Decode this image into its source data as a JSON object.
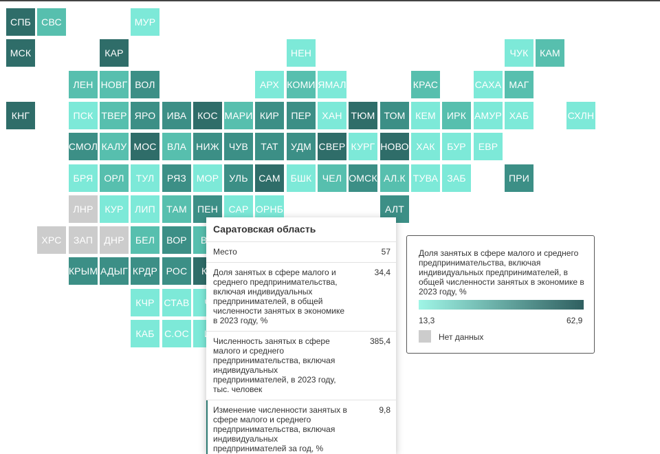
{
  "map": {
    "colors": {
      "light": "#7de9d8",
      "mint": "#5fd8c4",
      "mid": "#57bfae",
      "teal": "#3c8f86",
      "dark": "#2f6d69",
      "nodata": "#cccccc"
    },
    "regions": [
      {
        "code": "СПБ",
        "col": 0,
        "row": 0,
        "shade": "dark"
      },
      {
        "code": "СВС",
        "col": 1,
        "row": 0,
        "shade": "mid"
      },
      {
        "code": "МУР",
        "col": 4,
        "row": 0,
        "shade": "light"
      },
      {
        "code": "МСК",
        "col": 0,
        "row": 1,
        "shade": "dark"
      },
      {
        "code": "КАР",
        "col": 3,
        "row": 1,
        "shade": "dark"
      },
      {
        "code": "НЕН",
        "col": 9,
        "row": 1,
        "shade": "light"
      },
      {
        "code": "ЧУК",
        "col": 16,
        "row": 1,
        "shade": "light"
      },
      {
        "code": "КАМ",
        "col": 17,
        "row": 1,
        "shade": "mid"
      },
      {
        "code": "ЛЕН",
        "col": 2,
        "row": 2,
        "shade": "mid"
      },
      {
        "code": "НОВГ",
        "col": 3,
        "row": 2,
        "shade": "mid"
      },
      {
        "code": "ВОЛ",
        "col": 4,
        "row": 2,
        "shade": "teal"
      },
      {
        "code": "АРХ",
        "col": 8,
        "row": 2,
        "shade": "light"
      },
      {
        "code": "КОМИ",
        "col": 9,
        "row": 2,
        "shade": "mid"
      },
      {
        "code": "ЯМАЛ",
        "col": 10,
        "row": 2,
        "shade": "light"
      },
      {
        "code": "КРАС",
        "col": 13,
        "row": 2,
        "shade": "mid"
      },
      {
        "code": "САХА",
        "col": 15,
        "row": 2,
        "shade": "light"
      },
      {
        "code": "МАГ",
        "col": 16,
        "row": 2,
        "shade": "mid"
      },
      {
        "code": "КНГ",
        "col": 0,
        "row": 3,
        "shade": "dark"
      },
      {
        "code": "ПСК",
        "col": 2,
        "row": 3,
        "shade": "light"
      },
      {
        "code": "ТВЕР",
        "col": 3,
        "row": 3,
        "shade": "mid"
      },
      {
        "code": "ЯРО",
        "col": 4,
        "row": 3,
        "shade": "teal"
      },
      {
        "code": "ИВА",
        "col": 5,
        "row": 3,
        "shade": "teal"
      },
      {
        "code": "КОС",
        "col": 6,
        "row": 3,
        "shade": "dark"
      },
      {
        "code": "МАРИ",
        "col": 7,
        "row": 3,
        "shade": "mid"
      },
      {
        "code": "КИР",
        "col": 8,
        "row": 3,
        "shade": "teal"
      },
      {
        "code": "ПЕР",
        "col": 9,
        "row": 3,
        "shade": "teal"
      },
      {
        "code": "ХАН",
        "col": 10,
        "row": 3,
        "shade": "light"
      },
      {
        "code": "ТЮМ",
        "col": 11,
        "row": 3,
        "shade": "dark"
      },
      {
        "code": "ТОМ",
        "col": 12,
        "row": 3,
        "shade": "teal"
      },
      {
        "code": "КЕМ",
        "col": 13,
        "row": 3,
        "shade": "light"
      },
      {
        "code": "ИРК",
        "col": 14,
        "row": 3,
        "shade": "mid"
      },
      {
        "code": "АМУР",
        "col": 15,
        "row": 3,
        "shade": "light"
      },
      {
        "code": "ХАБ",
        "col": 16,
        "row": 3,
        "shade": "light"
      },
      {
        "code": "СХЛН",
        "col": 18,
        "row": 3,
        "shade": "light"
      },
      {
        "code": "СМОЛ",
        "col": 2,
        "row": 4,
        "shade": "teal"
      },
      {
        "code": "КАЛУ",
        "col": 3,
        "row": 4,
        "shade": "mid"
      },
      {
        "code": "МОС",
        "col": 4,
        "row": 4,
        "shade": "dark"
      },
      {
        "code": "ВЛА",
        "col": 5,
        "row": 4,
        "shade": "mid"
      },
      {
        "code": "НИЖ",
        "col": 6,
        "row": 4,
        "shade": "teal"
      },
      {
        "code": "ЧУВ",
        "col": 7,
        "row": 4,
        "shade": "teal"
      },
      {
        "code": "ТАТ",
        "col": 8,
        "row": 4,
        "shade": "teal"
      },
      {
        "code": "УДМ",
        "col": 9,
        "row": 4,
        "shade": "teal"
      },
      {
        "code": "СВЕР",
        "col": 10,
        "row": 4,
        "shade": "dark"
      },
      {
        "code": "КУРГ",
        "col": 11,
        "row": 4,
        "shade": "light"
      },
      {
        "code": "НОВО",
        "col": 12,
        "row": 4,
        "shade": "dark"
      },
      {
        "code": "ХАК",
        "col": 13,
        "row": 4,
        "shade": "light"
      },
      {
        "code": "БУР",
        "col": 14,
        "row": 4,
        "shade": "light"
      },
      {
        "code": "ЕВР",
        "col": 15,
        "row": 4,
        "shade": "light"
      },
      {
        "code": "БРЯ",
        "col": 2,
        "row": 5,
        "shade": "light"
      },
      {
        "code": "ОРЛ",
        "col": 3,
        "row": 5,
        "shade": "mid"
      },
      {
        "code": "ТУЛ",
        "col": 4,
        "row": 5,
        "shade": "light"
      },
      {
        "code": "РЯЗ",
        "col": 5,
        "row": 5,
        "shade": "teal"
      },
      {
        "code": "МОР",
        "col": 6,
        "row": 5,
        "shade": "light"
      },
      {
        "code": "УЛЬ",
        "col": 7,
        "row": 5,
        "shade": "teal"
      },
      {
        "code": "САМ",
        "col": 8,
        "row": 5,
        "shade": "dark"
      },
      {
        "code": "БШК",
        "col": 9,
        "row": 5,
        "shade": "light"
      },
      {
        "code": "ЧЕЛ",
        "col": 10,
        "row": 5,
        "shade": "mid"
      },
      {
        "code": "ОМСК",
        "col": 11,
        "row": 5,
        "shade": "teal"
      },
      {
        "code": "АЛ.К",
        "col": 12,
        "row": 5,
        "shade": "mid"
      },
      {
        "code": "ТУВА",
        "col": 13,
        "row": 5,
        "shade": "light"
      },
      {
        "code": "ЗАБ",
        "col": 14,
        "row": 5,
        "shade": "light"
      },
      {
        "code": "ПРИ",
        "col": 16,
        "row": 5,
        "shade": "teal"
      },
      {
        "code": "ЛНР",
        "col": 2,
        "row": 6,
        "shade": "nodata"
      },
      {
        "code": "КУР",
        "col": 3,
        "row": 6,
        "shade": "light"
      },
      {
        "code": "ЛИП",
        "col": 4,
        "row": 6,
        "shade": "light"
      },
      {
        "code": "ТАМ",
        "col": 5,
        "row": 6,
        "shade": "mid"
      },
      {
        "code": "ПЕН",
        "col": 6,
        "row": 6,
        "shade": "teal"
      },
      {
        "code": "САР",
        "col": 7,
        "row": 6,
        "shade": "light"
      },
      {
        "code": "ОРНБ",
        "col": 8,
        "row": 6,
        "shade": "light"
      },
      {
        "code": "АЛТ",
        "col": 12,
        "row": 6,
        "shade": "teal"
      },
      {
        "code": "ХРС",
        "col": 1,
        "row": 7,
        "shade": "nodata"
      },
      {
        "code": "ЗАП",
        "col": 2,
        "row": 7,
        "shade": "nodata"
      },
      {
        "code": "ДНР",
        "col": 3,
        "row": 7,
        "shade": "nodata"
      },
      {
        "code": "БЕЛ",
        "col": 4,
        "row": 7,
        "shade": "mid"
      },
      {
        "code": "ВОР",
        "col": 5,
        "row": 7,
        "shade": "teal"
      },
      {
        "code": "ВО",
        "col": 6,
        "row": 7,
        "shade": "mid"
      },
      {
        "code": "КРЫМ",
        "col": 2,
        "row": 8,
        "shade": "teal"
      },
      {
        "code": "АДЫГ",
        "col": 3,
        "row": 8,
        "shade": "teal"
      },
      {
        "code": "КРДР",
        "col": 4,
        "row": 8,
        "shade": "teal"
      },
      {
        "code": "РОС",
        "col": 5,
        "row": 8,
        "shade": "teal"
      },
      {
        "code": "КА",
        "col": 6,
        "row": 8,
        "shade": "dark"
      },
      {
        "code": "КЧР",
        "col": 4,
        "row": 9,
        "shade": "light"
      },
      {
        "code": "СТАВ",
        "col": 5,
        "row": 9,
        "shade": "light"
      },
      {
        "code": "Ч",
        "col": 6,
        "row": 9,
        "shade": "light"
      },
      {
        "code": "КАБ",
        "col": 4,
        "row": 10,
        "shade": "light"
      },
      {
        "code": "С.ОС",
        "col": 5,
        "row": 10,
        "shade": "light"
      },
      {
        "code": "И",
        "col": 6,
        "row": 10,
        "shade": "light"
      }
    ]
  },
  "tooltip": {
    "title": "Саратовская область",
    "rows": [
      {
        "label": "Место",
        "value": "57"
      },
      {
        "label": "Доля занятых в сфере малого и среднего предпринимательства, включая индивидуальных предпринимателей, в общей численности занятых в экономике в 2023 году, %",
        "value": "34,4"
      },
      {
        "label": "Численность занятых в сфере малого и среднего предпринимательства, включая индивидуальных предпринимателей, в 2023 году, тыс. человек",
        "value": "385,4"
      },
      {
        "label": "Изменение численности занятых в сфере малого и среднего предпринимательства, включая индивидуальных предпринимателей за год, %",
        "value": "9,8"
      }
    ]
  },
  "legend": {
    "title": "Доля занятых в сфере малого и среднего предпринимательства, включая индивидуальных предпринимателей, в общей численности занятых в экономике в 2023 году, %",
    "min": "13,3",
    "max": "62,9",
    "nodata_label": "Нет данных",
    "gradient_start": "#9ff5e6",
    "gradient_end": "#2f5f60"
  }
}
